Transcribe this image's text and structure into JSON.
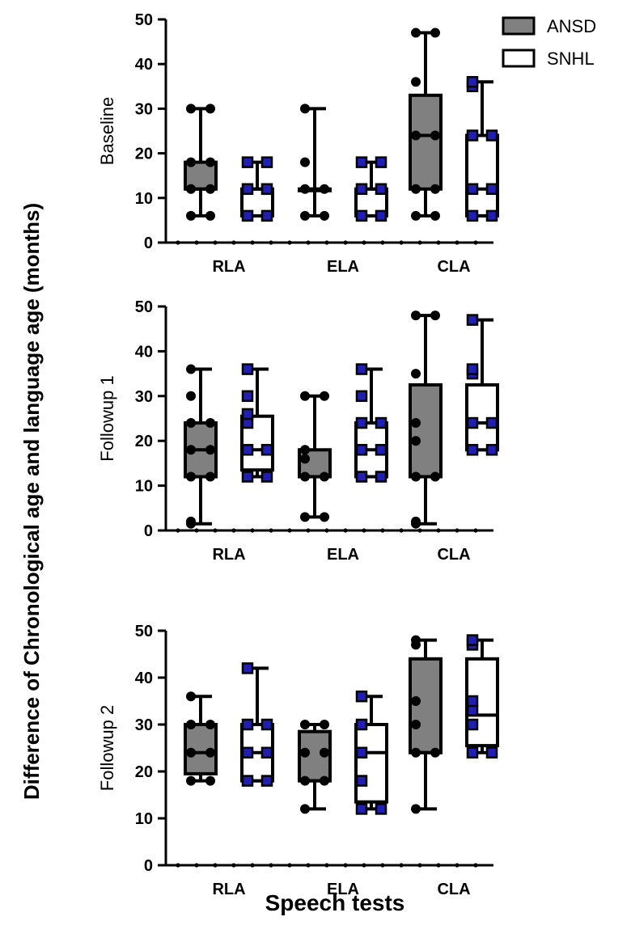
{
  "colors": {
    "ansd_fill": "#808080",
    "snhl_fill": "#ffffff",
    "outline": "#000000",
    "snhl_marker": "#1f1fb4"
  },
  "legend": {
    "position": "top-right",
    "items": [
      {
        "label": "ANSD"
      },
      {
        "label": "SNHL"
      }
    ]
  },
  "chart_data": [
    {
      "type": "box",
      "ylabel": "Baseline",
      "categories": [
        "RLA",
        "ELA",
        "CLA"
      ],
      "ylim": [
        0,
        50
      ],
      "yticks": [
        0,
        10,
        20,
        30,
        40,
        50
      ],
      "series": [
        {
          "name": "ANSD",
          "boxes": [
            {
              "min": 6,
              "q1": 12,
              "median": 12,
              "q3": 18,
              "max": 30,
              "points": [
                6,
                6,
                12,
                12,
                18,
                18,
                30,
                30
              ]
            },
            {
              "min": 6,
              "q1": 12,
              "median": 12,
              "q3": 12,
              "max": 30,
              "points": [
                6,
                6,
                12,
                12,
                18,
                30
              ]
            },
            {
              "min": 6,
              "q1": 12,
              "median": 24,
              "q3": 33,
              "max": 47,
              "points": [
                6,
                6,
                12,
                12,
                24,
                24,
                36,
                47,
                47
              ]
            }
          ]
        },
        {
          "name": "SNHL",
          "boxes": [
            {
              "min": 6,
              "q1": 6,
              "median": 12,
              "q3": 12,
              "max": 18,
              "points": [
                6,
                6,
                12,
                12,
                18,
                18
              ]
            },
            {
              "min": 6,
              "q1": 6,
              "median": 12,
              "q3": 12,
              "max": 18,
              "points": [
                6,
                6,
                12,
                12,
                18,
                18
              ]
            },
            {
              "min": 6,
              "q1": 6,
              "median": 12,
              "q3": 24,
              "max": 36,
              "points": [
                6,
                6,
                12,
                12,
                24,
                24,
                35,
                36
              ]
            }
          ]
        }
      ]
    },
    {
      "type": "box",
      "ylabel": "Followup 1",
      "categories": [
        "RLA",
        "ELA",
        "CLA"
      ],
      "ylim": [
        0,
        50
      ],
      "yticks": [
        0,
        10,
        20,
        30,
        40,
        50
      ],
      "series": [
        {
          "name": "ANSD",
          "boxes": [
            {
              "min": 1.5,
              "q1": 12,
              "median": 18,
              "q3": 24,
              "max": 36,
              "points": [
                1.5,
                2,
                12,
                12,
                18,
                18,
                24,
                24,
                30,
                36
              ]
            },
            {
              "min": 3,
              "q1": 12,
              "median": 12,
              "q3": 18,
              "max": 30,
              "points": [
                3,
                3,
                12,
                12,
                16,
                18,
                30,
                30
              ]
            },
            {
              "min": 1.5,
              "q1": 12,
              "median": 12,
              "q3": 32.5,
              "max": 48,
              "points": [
                1.5,
                2,
                12,
                12,
                20,
                24,
                35,
                48,
                48
              ]
            }
          ]
        },
        {
          "name": "SNHL",
          "boxes": [
            {
              "min": 12,
              "q1": 13.5,
              "median": 18,
              "q3": 25.5,
              "max": 36,
              "points": [
                12,
                12,
                18,
                18,
                24,
                26,
                30,
                36
              ]
            },
            {
              "min": 12,
              "q1": 12,
              "median": 18,
              "q3": 24,
              "max": 36,
              "points": [
                12,
                12,
                18,
                18,
                24,
                24,
                30,
                36
              ]
            },
            {
              "min": 18,
              "q1": 18,
              "median": 24,
              "q3": 32.5,
              "max": 47,
              "points": [
                18,
                18,
                24,
                24,
                35,
                36,
                47
              ]
            }
          ]
        }
      ]
    },
    {
      "type": "box",
      "ylabel": "Followup 2",
      "categories": [
        "RLA",
        "ELA",
        "CLA"
      ],
      "ylim": [
        0,
        50
      ],
      "yticks": [
        0,
        10,
        20,
        30,
        40,
        50
      ],
      "series": [
        {
          "name": "ANSD",
          "boxes": [
            {
              "min": 18,
              "q1": 19.5,
              "median": 24,
              "q3": 30,
              "max": 36,
              "points": [
                18,
                18,
                24,
                24,
                30,
                30,
                36
              ]
            },
            {
              "min": 12,
              "q1": 18,
              "median": 18,
              "q3": 28.5,
              "max": 30,
              "points": [
                12,
                18,
                18,
                24,
                24,
                30,
                30
              ]
            },
            {
              "min": 12,
              "q1": 24,
              "median": 24,
              "q3": 44,
              "max": 48,
              "points": [
                12,
                24,
                24,
                30,
                35,
                47,
                48
              ]
            }
          ]
        },
        {
          "name": "SNHL",
          "boxes": [
            {
              "min": 18,
              "q1": 18,
              "median": 24,
              "q3": 30,
              "max": 42,
              "points": [
                18,
                18,
                24,
                24,
                30,
                30,
                42
              ]
            },
            {
              "min": 12,
              "q1": 13.5,
              "median": 24,
              "q3": 30,
              "max": 36,
              "points": [
                12,
                12,
                18,
                24,
                30,
                36
              ]
            },
            {
              "min": 24,
              "q1": 25.5,
              "median": 32,
              "q3": 44,
              "max": 48,
              "points": [
                24,
                24,
                30,
                33,
                35,
                47,
                48
              ]
            }
          ]
        }
      ]
    }
  ],
  "axes": {
    "ylabel": "Difference of Chronological age and language age (months)",
    "xlabel": "Speech tests"
  }
}
